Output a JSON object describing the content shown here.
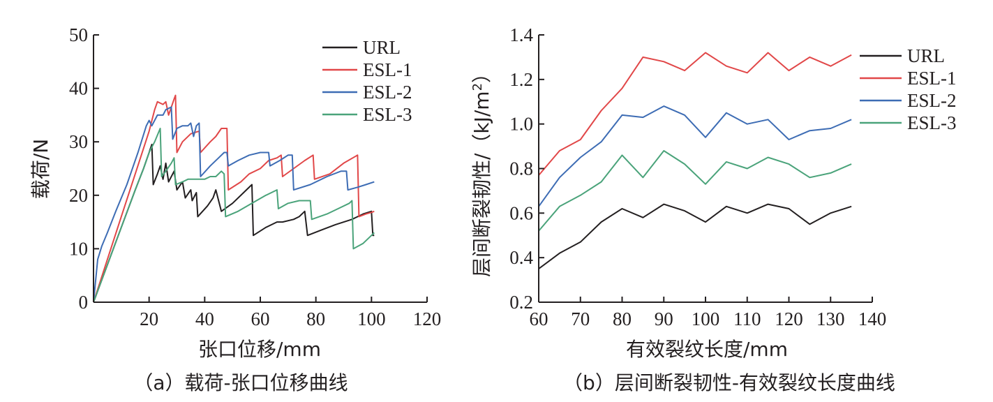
{
  "chart_data": [
    {
      "type": "line",
      "panel": "a",
      "caption": "（a）载荷-张口位移曲线",
      "xlabel": "张口位移/mm",
      "ylabel": "载荷/N",
      "xlim": [
        0,
        120
      ],
      "ylim": [
        0,
        50
      ],
      "xticks": [
        20,
        40,
        60,
        80,
        100,
        120
      ],
      "yticks": [
        0,
        10,
        20,
        30,
        40,
        50
      ],
      "legend_position": "top-right",
      "series": [
        {
          "name": "URL",
          "color": "#231f20",
          "points": [
            [
              0,
              0
            ],
            [
              5,
              7
            ],
            [
              10,
              14
            ],
            [
              15,
              21
            ],
            [
              18,
              25
            ],
            [
              20,
              28
            ],
            [
              21,
              29.5
            ],
            [
              21.5,
              22
            ],
            [
              23,
              24
            ],
            [
              24,
              25.5
            ],
            [
              25,
              23
            ],
            [
              26,
              26
            ],
            [
              27,
              22.5
            ],
            [
              29,
              24.5
            ],
            [
              30,
              21
            ],
            [
              32,
              22.5
            ],
            [
              33,
              19.5
            ],
            [
              35,
              21
            ],
            [
              35.5,
              19
            ],
            [
              37,
              20.5
            ],
            [
              37.5,
              16
            ],
            [
              41,
              18
            ],
            [
              43,
              19.5
            ],
            [
              44,
              21
            ],
            [
              46,
              17
            ],
            [
              50,
              18.5
            ],
            [
              54,
              20.5
            ],
            [
              57,
              22
            ],
            [
              57.5,
              12.5
            ],
            [
              62,
              14
            ],
            [
              66,
              15
            ],
            [
              68,
              15
            ],
            [
              72,
              15.5
            ],
            [
              74,
              16
            ],
            [
              76,
              17
            ],
            [
              77,
              12.5
            ],
            [
              82,
              13.5
            ],
            [
              87,
              14.5
            ],
            [
              93,
              15.5
            ],
            [
              97,
              16.5
            ],
            [
              100,
              17
            ],
            [
              100.5,
              12.5
            ],
            [
              101,
              12.5
            ]
          ]
        },
        {
          "name": "ESL-1",
          "color": "#e14748",
          "points": [
            [
              0,
              0
            ],
            [
              5,
              8
            ],
            [
              10,
              16
            ],
            [
              15,
              24
            ],
            [
              20,
              32
            ],
            [
              22,
              36
            ],
            [
              23,
              37.5
            ],
            [
              25,
              37
            ],
            [
              26,
              37.5
            ],
            [
              27,
              35
            ],
            [
              29,
              38
            ],
            [
              29.5,
              38.7
            ],
            [
              30,
              28
            ],
            [
              32,
              30
            ],
            [
              35,
              31.5
            ],
            [
              38,
              32
            ],
            [
              38.5,
              28
            ],
            [
              42,
              30
            ],
            [
              44,
              31
            ],
            [
              46,
              32.5
            ],
            [
              48,
              32.5
            ],
            [
              48.5,
              21
            ],
            [
              53,
              22.5
            ],
            [
              56,
              24
            ],
            [
              60,
              25
            ],
            [
              63,
              26.5
            ],
            [
              66,
              27
            ],
            [
              67.5,
              27.5
            ],
            [
              68,
              23.5
            ],
            [
              72,
              25
            ],
            [
              76,
              26.5
            ],
            [
              79,
              27.5
            ],
            [
              79.5,
              23
            ],
            [
              85,
              24
            ],
            [
              90,
              26
            ],
            [
              95,
              27.5
            ],
            [
              95.5,
              16
            ],
            [
              98,
              16.5
            ],
            [
              100,
              16.8
            ],
            [
              101,
              17
            ]
          ]
        },
        {
          "name": "ESL-2",
          "color": "#3d6cb4",
          "points": [
            [
              0,
              0
            ],
            [
              1.5,
              8
            ],
            [
              3,
              10.5
            ],
            [
              5,
              13
            ],
            [
              8,
              17
            ],
            [
              12,
              22
            ],
            [
              16,
              28
            ],
            [
              19,
              33
            ],
            [
              20,
              34
            ],
            [
              21,
              33
            ],
            [
              23,
              35
            ],
            [
              25,
              35
            ],
            [
              26,
              36
            ],
            [
              28,
              36.5
            ],
            [
              28.5,
              30.5
            ],
            [
              30,
              32.5
            ],
            [
              32,
              33
            ],
            [
              34,
              33
            ],
            [
              35,
              33.5
            ],
            [
              36,
              31
            ],
            [
              37,
              33
            ],
            [
              38,
              33.5
            ],
            [
              38.5,
              23.5
            ],
            [
              42,
              25.5
            ],
            [
              45,
              27
            ],
            [
              47,
              28
            ],
            [
              48,
              28
            ],
            [
              48.5,
              25.5
            ],
            [
              52,
              26.5
            ],
            [
              56,
              27.5
            ],
            [
              60,
              28
            ],
            [
              62,
              28
            ],
            [
              63,
              28
            ],
            [
              63.5,
              25.5
            ],
            [
              67,
              26.5
            ],
            [
              70,
              27.5
            ],
            [
              71.5,
              27.5
            ],
            [
              72,
              21
            ],
            [
              78,
              22
            ],
            [
              84,
              23.5
            ],
            [
              89,
              24.5
            ],
            [
              91,
              24.5
            ],
            [
              91.5,
              21
            ],
            [
              95,
              21.5
            ],
            [
              98,
              22
            ],
            [
              101,
              22.5
            ]
          ]
        },
        {
          "name": "ESL-3",
          "color": "#4aa37a",
          "points": [
            [
              0,
              0
            ],
            [
              5,
              7
            ],
            [
              10,
              14
            ],
            [
              15,
              21
            ],
            [
              18,
              25
            ],
            [
              20,
              28
            ],
            [
              22,
              30
            ],
            [
              24,
              32.5
            ],
            [
              24.5,
              23.5
            ],
            [
              26,
              24.5
            ],
            [
              28,
              26
            ],
            [
              29,
              27
            ],
            [
              29.5,
              22
            ],
            [
              32,
              22.5
            ],
            [
              34,
              23
            ],
            [
              36,
              23
            ],
            [
              38,
              23
            ],
            [
              40,
              23
            ],
            [
              42,
              23.5
            ],
            [
              44,
              23.5
            ],
            [
              46,
              24.5
            ],
            [
              47,
              24
            ],
            [
              47.5,
              16
            ],
            [
              52,
              17
            ],
            [
              57,
              18.5
            ],
            [
              62,
              20
            ],
            [
              66,
              21
            ],
            [
              66.5,
              17.5
            ],
            [
              70,
              18.5
            ],
            [
              74,
              19
            ],
            [
              78,
              19
            ],
            [
              78.5,
              15.5
            ],
            [
              84,
              16.5
            ],
            [
              88,
              17.5
            ],
            [
              92,
              18.5
            ],
            [
              93,
              19
            ],
            [
              93.5,
              10
            ],
            [
              97,
              11
            ],
            [
              100,
              12.5
            ],
            [
              101,
              13
            ]
          ]
        }
      ]
    },
    {
      "type": "line",
      "panel": "b",
      "caption": "（b）层间断裂韧性-有效裂纹长度曲线",
      "xlabel": "有效裂纹长度/mm",
      "ylabel_main": "层间断裂韧性/（kJ/m",
      "ylabel_sup": "2",
      "ylabel_end": "）",
      "xlim": [
        60,
        140
      ],
      "ylim": [
        0.2,
        1.4
      ],
      "xticks": [
        60,
        70,
        80,
        90,
        100,
        110,
        120,
        130,
        140
      ],
      "yticks": [
        0.2,
        0.4,
        0.6,
        0.8,
        1.0,
        1.2,
        1.4
      ],
      "ytick_labels": [
        "0.2",
        "0.4",
        "0.6",
        "0.8",
        "1.0",
        "1.2",
        "1.4"
      ],
      "legend_position": "top-right",
      "x": [
        60,
        65,
        70,
        75,
        80,
        85,
        90,
        95,
        100,
        105,
        110,
        115,
        120,
        125,
        130,
        135
      ],
      "series": [
        {
          "name": "URL",
          "color": "#231f20",
          "values": [
            0.35,
            0.42,
            0.47,
            0.56,
            0.62,
            0.58,
            0.64,
            0.61,
            0.56,
            0.63,
            0.6,
            0.64,
            0.62,
            0.55,
            0.6,
            0.63
          ]
        },
        {
          "name": "ESL-1",
          "color": "#e14748",
          "values": [
            0.77,
            0.88,
            0.93,
            1.06,
            1.16,
            1.3,
            1.28,
            1.24,
            1.32,
            1.26,
            1.23,
            1.32,
            1.24,
            1.3,
            1.26,
            1.31
          ]
        },
        {
          "name": "ESL-2",
          "color": "#3d6cb4",
          "values": [
            0.63,
            0.76,
            0.85,
            0.92,
            1.04,
            1.03,
            1.08,
            1.04,
            0.94,
            1.05,
            1.0,
            1.02,
            0.93,
            0.97,
            0.98,
            1.02
          ]
        },
        {
          "name": "ESL-3",
          "color": "#4aa37a",
          "values": [
            0.52,
            0.63,
            0.68,
            0.74,
            0.86,
            0.76,
            0.88,
            0.82,
            0.73,
            0.83,
            0.8,
            0.85,
            0.82,
            0.76,
            0.78,
            0.82
          ]
        }
      ]
    }
  ]
}
